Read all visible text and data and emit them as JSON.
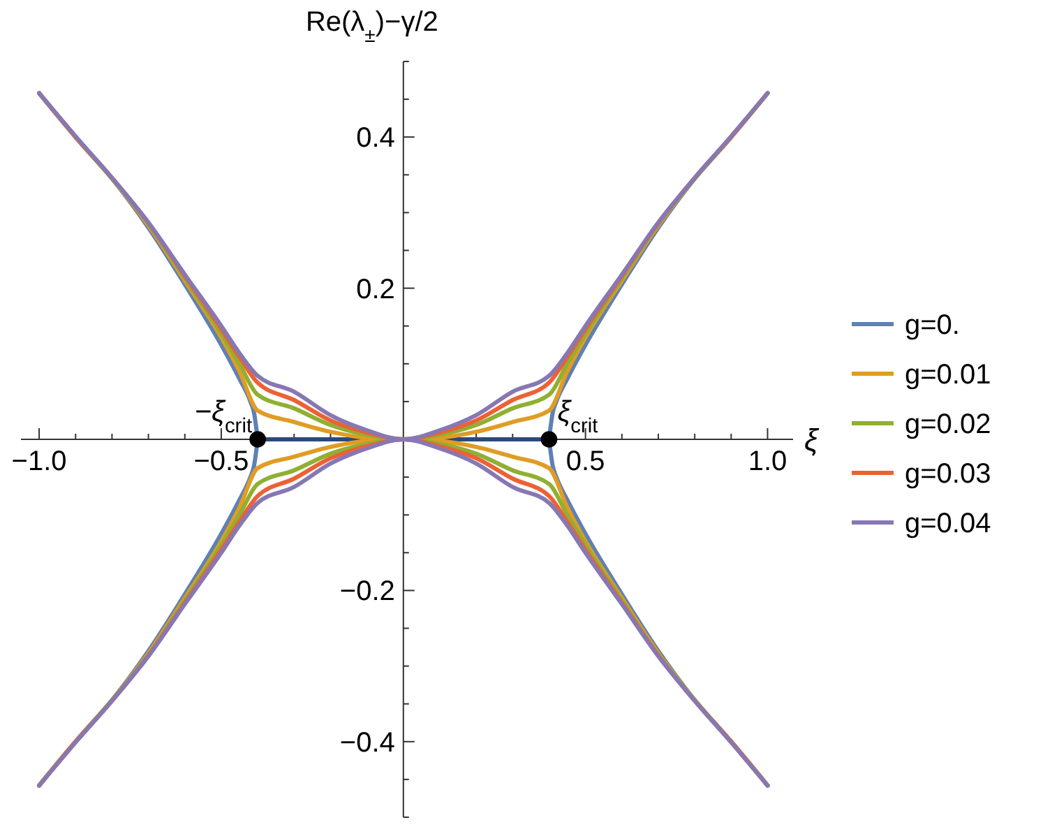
{
  "chart_data": {
    "type": "line",
    "xlabel": "ξ",
    "ylabel": "Re(λ$_{±}$)−γ/2",
    "xlim": [
      -1.05,
      1.07
    ],
    "ylim": [
      -0.5,
      0.5
    ],
    "xticks": [
      {
        "value": -1,
        "label": "−1.0"
      },
      {
        "value": -0.9,
        "label": null
      },
      {
        "value": -0.8,
        "label": null
      },
      {
        "value": -0.7,
        "label": null
      },
      {
        "value": -0.6,
        "label": null
      },
      {
        "value": -0.5,
        "label": "−0.5"
      },
      {
        "value": -0.4,
        "label": null
      },
      {
        "value": -0.3,
        "label": null
      },
      {
        "value": -0.2,
        "label": null
      },
      {
        "value": -0.1,
        "label": null
      },
      {
        "value": 0.1,
        "label": null
      },
      {
        "value": 0.2,
        "label": null
      },
      {
        "value": 0.3,
        "label": null
      },
      {
        "value": 0.4,
        "label": null
      },
      {
        "value": 0.5,
        "label": "0.5"
      },
      {
        "value": 0.6,
        "label": null
      },
      {
        "value": 0.7,
        "label": null
      },
      {
        "value": 0.8,
        "label": null
      },
      {
        "value": 0.9,
        "label": null
      },
      {
        "value": 1,
        "label": "1.0"
      }
    ],
    "yticks": [
      {
        "value": -0.5,
        "label": null
      },
      {
        "value": -0.45,
        "label": null
      },
      {
        "value": -0.4,
        "label": "−0.4"
      },
      {
        "value": -0.35,
        "label": null
      },
      {
        "value": -0.3,
        "label": null
      },
      {
        "value": -0.25,
        "label": null
      },
      {
        "value": -0.2,
        "label": "−0.2"
      },
      {
        "value": -0.15,
        "label": null
      },
      {
        "value": -0.1,
        "label": null
      },
      {
        "value": -0.05,
        "label": null
      },
      {
        "value": 0.05,
        "label": null
      },
      {
        "value": 0.1,
        "label": null
      },
      {
        "value": 0.15,
        "label": null
      },
      {
        "value": 0.2,
        "label": "0.2"
      },
      {
        "value": 0.25,
        "label": null
      },
      {
        "value": 0.3,
        "label": null
      },
      {
        "value": 0.35,
        "label": null
      },
      {
        "value": 0.4,
        "label": "0.4"
      },
      {
        "value": 0.45,
        "label": null
      },
      {
        "value": 0.5,
        "label": null
      }
    ],
    "grid": false,
    "legend": "right",
    "marker": "none",
    "line_style": "solid",
    "series": [
      {
        "name": "g=0.",
        "color": "#5e81b5",
        "x": [
          -1,
          -0.9,
          -0.8,
          -0.7,
          -0.6,
          -0.5,
          -0.45,
          -0.42,
          -0.41,
          -0.4,
          0,
          0.4,
          0.41,
          0.42,
          0.45,
          0.5,
          0.6,
          0.7,
          0.8,
          0.9,
          1
        ],
        "values": [
          0.458,
          0.4,
          0.345,
          0.28,
          0.205,
          0.125,
          0.08,
          0.05,
          0.035,
          0,
          null,
          0,
          0.035,
          0.05,
          0.08,
          0.125,
          0.205,
          0.28,
          0.345,
          0.4,
          0.458
        ]
      },
      {
        "color": "#5e81b5",
        "x": [
          -1,
          -0.9,
          -0.8,
          -0.7,
          -0.6,
          -0.5,
          -0.45,
          -0.42,
          -0.41,
          -0.4,
          0,
          0.4,
          0.41,
          0.42,
          0.45,
          0.5,
          0.6,
          0.7,
          0.8,
          0.9,
          1
        ],
        "values": [
          -0.458,
          -0.4,
          -0.345,
          -0.28,
          -0.205,
          -0.125,
          -0.08,
          -0.05,
          -0.035,
          0,
          null,
          0,
          -0.035,
          -0.05,
          -0.08,
          -0.125,
          -0.205,
          -0.28,
          -0.345,
          -0.4,
          -0.458
        ]
      },
      {
        "color": "#2b4a7a",
        "x": [
          -0.4,
          0.4
        ],
        "values": [
          0,
          0
        ]
      },
      {
        "name": "g=0.01",
        "color": "#e19c24",
        "x": [
          -1,
          -0.9,
          -0.8,
          -0.7,
          -0.6,
          -0.5,
          -0.45,
          -0.4,
          -0.3,
          -0.2,
          -0.1,
          0,
          0.1,
          0.2,
          0.3,
          0.4,
          0.45,
          0.5,
          0.6,
          0.7,
          0.8,
          0.9,
          1
        ],
        "values": [
          0.458,
          0.4,
          0.345,
          0.283,
          0.21,
          0.135,
          0.09,
          0.038,
          0.023,
          0.01,
          0.002,
          0,
          0.002,
          0.01,
          0.023,
          0.038,
          0.09,
          0.135,
          0.21,
          0.283,
          0.345,
          0.4,
          0.458
        ]
      },
      {
        "color": "#e19c24",
        "x": [
          -1,
          -0.9,
          -0.8,
          -0.7,
          -0.6,
          -0.5,
          -0.45,
          -0.4,
          -0.3,
          -0.2,
          -0.1,
          0,
          0.1,
          0.2,
          0.3,
          0.4,
          0.45,
          0.5,
          0.6,
          0.7,
          0.8,
          0.9,
          1
        ],
        "values": [
          -0.458,
          -0.4,
          -0.345,
          -0.283,
          -0.21,
          -0.135,
          -0.09,
          -0.038,
          -0.023,
          -0.01,
          -0.002,
          0,
          -0.002,
          -0.01,
          -0.023,
          -0.038,
          -0.09,
          -0.135,
          -0.21,
          -0.283,
          -0.345,
          -0.4,
          -0.458
        ]
      },
      {
        "name": "g=0.02",
        "color": "#8fb032",
        "x": [
          -1,
          -0.9,
          -0.8,
          -0.7,
          -0.6,
          -0.5,
          -0.45,
          -0.4,
          -0.3,
          -0.2,
          -0.1,
          0,
          0.1,
          0.2,
          0.3,
          0.4,
          0.45,
          0.5,
          0.6,
          0.7,
          0.8,
          0.9,
          1
        ],
        "values": [
          0.458,
          0.4,
          0.345,
          0.285,
          0.213,
          0.14,
          0.1,
          0.059,
          0.041,
          0.019,
          0.006,
          0,
          0.006,
          0.019,
          0.041,
          0.059,
          0.1,
          0.14,
          0.213,
          0.285,
          0.345,
          0.4,
          0.458
        ]
      },
      {
        "color": "#8fb032",
        "x": [
          -1,
          -0.9,
          -0.8,
          -0.7,
          -0.6,
          -0.5,
          -0.45,
          -0.4,
          -0.3,
          -0.2,
          -0.1,
          0,
          0.1,
          0.2,
          0.3,
          0.4,
          0.45,
          0.5,
          0.6,
          0.7,
          0.8,
          0.9,
          1
        ],
        "values": [
          -0.458,
          -0.4,
          -0.345,
          -0.285,
          -0.213,
          -0.14,
          -0.1,
          -0.059,
          -0.041,
          -0.019,
          -0.006,
          0,
          -0.006,
          -0.019,
          -0.041,
          -0.059,
          -0.1,
          -0.14,
          -0.213,
          -0.285,
          -0.345,
          -0.4,
          -0.458
        ]
      },
      {
        "name": "g=0.03",
        "color": "#eb6235",
        "x": [
          -1,
          -0.9,
          -0.8,
          -0.7,
          -0.6,
          -0.5,
          -0.45,
          -0.4,
          -0.3,
          -0.2,
          -0.1,
          0,
          0.1,
          0.2,
          0.3,
          0.4,
          0.45,
          0.5,
          0.6,
          0.7,
          0.8,
          0.9,
          1
        ],
        "values": [
          0.458,
          0.4,
          0.346,
          0.286,
          0.216,
          0.146,
          0.109,
          0.075,
          0.052,
          0.025,
          0.009,
          0,
          0.009,
          0.025,
          0.052,
          0.075,
          0.109,
          0.146,
          0.216,
          0.286,
          0.346,
          0.4,
          0.458
        ]
      },
      {
        "color": "#eb6235",
        "x": [
          -1,
          -0.9,
          -0.8,
          -0.7,
          -0.6,
          -0.5,
          -0.45,
          -0.4,
          -0.3,
          -0.2,
          -0.1,
          0,
          0.1,
          0.2,
          0.3,
          0.4,
          0.45,
          0.5,
          0.6,
          0.7,
          0.8,
          0.9,
          1
        ],
        "values": [
          -0.458,
          -0.4,
          -0.346,
          -0.286,
          -0.216,
          -0.146,
          -0.109,
          -0.075,
          -0.052,
          -0.025,
          -0.009,
          0,
          -0.009,
          -0.025,
          -0.052,
          -0.075,
          -0.109,
          -0.146,
          -0.216,
          -0.286,
          -0.346,
          -0.4,
          -0.458
        ]
      },
      {
        "name": "g=0.04",
        "color": "#8778b3",
        "x": [
          -1,
          -0.9,
          -0.8,
          -0.7,
          -0.6,
          -0.5,
          -0.45,
          -0.4,
          -0.3,
          -0.2,
          -0.1,
          0,
          0.1,
          0.2,
          0.3,
          0.4,
          0.45,
          0.5,
          0.6,
          0.7,
          0.8,
          0.9,
          1
        ],
        "values": [
          0.458,
          0.401,
          0.346,
          0.287,
          0.218,
          0.15,
          0.114,
          0.084,
          0.063,
          0.032,
          0.012,
          0,
          0.012,
          0.032,
          0.063,
          0.084,
          0.114,
          0.15,
          0.218,
          0.287,
          0.346,
          0.401,
          0.458
        ]
      },
      {
        "color": "#8778b3",
        "x": [
          -1,
          -0.9,
          -0.8,
          -0.7,
          -0.6,
          -0.5,
          -0.45,
          -0.4,
          -0.3,
          -0.2,
          -0.1,
          0,
          0.1,
          0.2,
          0.3,
          0.4,
          0.45,
          0.5,
          0.6,
          0.7,
          0.8,
          0.9,
          1
        ],
        "values": [
          -0.458,
          -0.401,
          -0.346,
          -0.287,
          -0.218,
          -0.15,
          -0.114,
          -0.084,
          -0.063,
          -0.032,
          -0.012,
          0,
          -0.012,
          -0.032,
          -0.063,
          -0.084,
          -0.114,
          -0.15,
          -0.218,
          -0.287,
          -0.346,
          -0.401,
          -0.458
        ]
      },
      {
        "type": "scatter",
        "marker": "circle",
        "color": "#000000",
        "x": [
          -0.4,
          0.4
        ],
        "values": [
          0,
          0
        ]
      }
    ],
    "annotations": [
      {
        "text": "−ξ$_{crit}$",
        "x": -0.4,
        "y": 0
      },
      {
        "text": "ξ$_{crit}$",
        "x": 0.4,
        "y": 0
      }
    ]
  }
}
